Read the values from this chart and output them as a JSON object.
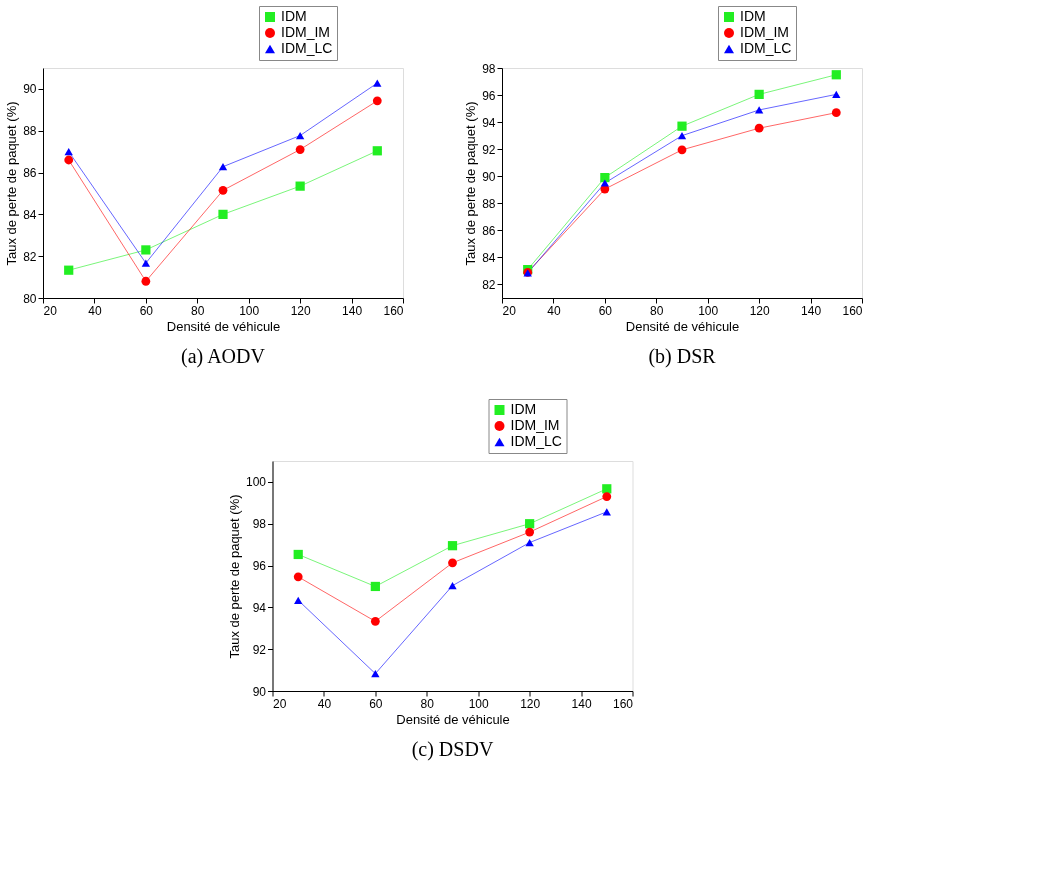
{
  "chart_data": [
    {
      "type": "line",
      "title": "(a) AODV",
      "xlabel": "Densité de véhicule",
      "ylabel": "Taux de perte de paquet (%)",
      "x": [
        30,
        60,
        90,
        120,
        150
      ],
      "xlim": [
        20,
        160
      ],
      "xticks": [
        20,
        40,
        60,
        80,
        100,
        120,
        140,
        160
      ],
      "ylim": [
        80,
        91
      ],
      "yticks": [
        80,
        82,
        84,
        86,
        88,
        90
      ],
      "grid": false,
      "legend": "top right",
      "series": [
        {
          "name": "IDM",
          "color": "#22ee22",
          "marker": "square",
          "values": [
            81.33,
            82.3,
            84.0,
            85.35,
            87.04
          ]
        },
        {
          "name": "IDM_IM",
          "color": "#ff0000",
          "marker": "circle",
          "values": [
            86.6,
            80.8,
            85.15,
            87.1,
            89.43
          ]
        },
        {
          "name": "IDM_LC",
          "color": "#0000ff",
          "marker": "triangle",
          "values": [
            87.0,
            81.67,
            86.28,
            87.77,
            90.28
          ]
        }
      ]
    },
    {
      "type": "line",
      "title": "(b) DSR",
      "xlabel": "Densité de véhicule",
      "ylabel": "Taux de perte de paquet (%)",
      "x": [
        30,
        60,
        90,
        120,
        150
      ],
      "xlim": [
        20,
        160
      ],
      "xticks": [
        20,
        40,
        60,
        80,
        100,
        120,
        140,
        160
      ],
      "ylim": [
        81,
        98
      ],
      "yticks": [
        82,
        84,
        86,
        88,
        90,
        92,
        94,
        96,
        98
      ],
      "grid": false,
      "legend": "top right",
      "series": [
        {
          "name": "IDM",
          "color": "#22ee22",
          "marker": "square",
          "values": [
            83.1,
            89.9,
            93.7,
            96.05,
            97.5
          ]
        },
        {
          "name": "IDM_IM",
          "color": "#ff0000",
          "marker": "circle",
          "values": [
            82.9,
            89.05,
            91.95,
            93.55,
            94.7
          ]
        },
        {
          "name": "IDM_LC",
          "color": "#0000ff",
          "marker": "triangle",
          "values": [
            82.85,
            89.5,
            93.0,
            94.9,
            96.05
          ]
        }
      ]
    },
    {
      "type": "line",
      "title": "(c) DSDV",
      "xlabel": "Densité de véhicule",
      "ylabel": "Taux de perte de paquet (%)",
      "x": [
        30,
        60,
        90,
        120,
        150
      ],
      "xlim": [
        20,
        160
      ],
      "xticks": [
        20,
        40,
        60,
        80,
        100,
        120,
        140,
        160
      ],
      "ylim": [
        90,
        101
      ],
      "yticks": [
        90,
        92,
        94,
        96,
        98,
        100
      ],
      "grid": false,
      "legend": "top right",
      "series": [
        {
          "name": "IDM",
          "color": "#22ee22",
          "marker": "square",
          "values": [
            96.53,
            95.0,
            96.95,
            98.0,
            99.67
          ]
        },
        {
          "name": "IDM_IM",
          "color": "#ff0000",
          "marker": "circle",
          "values": [
            95.46,
            93.33,
            96.13,
            97.6,
            99.3
          ]
        },
        {
          "name": "IDM_LC",
          "color": "#0000ff",
          "marker": "triangle",
          "values": [
            94.34,
            90.83,
            95.04,
            97.1,
            98.57
          ]
        }
      ]
    }
  ]
}
